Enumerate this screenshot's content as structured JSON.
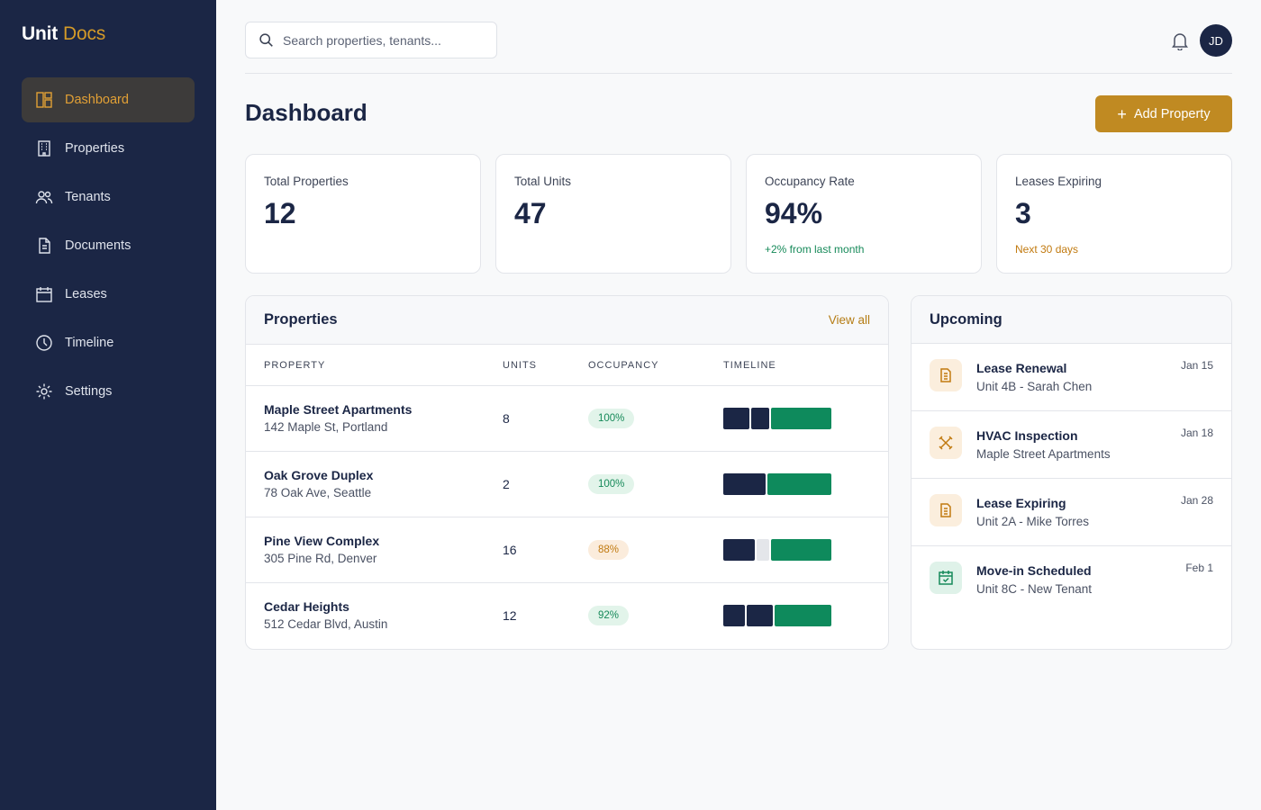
{
  "brand": {
    "name": "Unit",
    "accent": "Docs"
  },
  "sidebar": {
    "items": [
      {
        "label": "Dashboard",
        "icon": "dashboard-icon",
        "active": true
      },
      {
        "label": "Properties",
        "icon": "building-icon"
      },
      {
        "label": "Tenants",
        "icon": "users-icon"
      },
      {
        "label": "Documents",
        "icon": "document-icon"
      },
      {
        "label": "Leases",
        "icon": "calendar-icon"
      },
      {
        "label": "Timeline",
        "icon": "clock-icon"
      },
      {
        "label": "Settings",
        "icon": "gear-icon"
      }
    ]
  },
  "header": {
    "search_placeholder": "Search properties, tenants...",
    "avatar_initials": "JD"
  },
  "page": {
    "title": "Dashboard",
    "add_button": "Add Property"
  },
  "stats": [
    {
      "label": "Total Properties",
      "value": "12",
      "sub": ""
    },
    {
      "label": "Total Units",
      "value": "47",
      "sub": ""
    },
    {
      "label": "Occupancy Rate",
      "value": "94%",
      "sub": "+2% from last month"
    },
    {
      "label": "Leases Expiring",
      "value": "3",
      "sub": "Next 30 days"
    }
  ],
  "properties": {
    "title": "Properties",
    "view_all": "View all",
    "columns": [
      "Property",
      "Units",
      "Occupancy",
      "Timeline"
    ],
    "rows": [
      {
        "name": "Maple Street Apartments",
        "address": "142 Maple St, Portland",
        "units": "8",
        "occupancy": "100%",
        "status": "green",
        "timeline": [
          {
            "kind": "navy",
            "share": 0.25
          },
          {
            "kind": "navy",
            "share": 0.17
          },
          {
            "kind": "green",
            "share": 0.58
          }
        ]
      },
      {
        "name": "Oak Grove Duplex",
        "address": "78 Oak Ave, Seattle",
        "units": "2",
        "occupancy": "100%",
        "status": "green",
        "timeline": [
          {
            "kind": "navy",
            "share": 0.4
          },
          {
            "kind": "green",
            "share": 0.6
          }
        ]
      },
      {
        "name": "Pine View Complex",
        "address": "305 Pine Rd, Denver",
        "units": "16",
        "occupancy": "88%",
        "status": "amber",
        "timeline": [
          {
            "kind": "navy",
            "share": 0.3
          },
          {
            "kind": "gray",
            "share": 0.12
          },
          {
            "kind": "green",
            "share": 0.58
          }
        ]
      },
      {
        "name": "Cedar Heights",
        "address": "512 Cedar Blvd, Austin",
        "units": "12",
        "occupancy": "92%",
        "status": "green",
        "timeline": [
          {
            "kind": "navy",
            "share": 0.21
          },
          {
            "kind": "navy",
            "share": 0.25
          },
          {
            "kind": "green",
            "share": 0.54
          }
        ]
      }
    ]
  },
  "upcoming": {
    "title": "Upcoming",
    "items": [
      {
        "title": "Lease Renewal",
        "sub": "Unit 4B - Sarah Chen",
        "date": "Jan 15",
        "icon": "document-icon",
        "tone": "amber"
      },
      {
        "title": "HVAC Inspection",
        "sub": "Maple Street Apartments",
        "date": "Jan 18",
        "icon": "tools-icon",
        "tone": "amber"
      },
      {
        "title": "Lease Expiring",
        "sub": "Unit 2A - Mike Torres",
        "date": "Jan 28",
        "icon": "document-icon",
        "tone": "amber"
      },
      {
        "title": "Move-in Scheduled",
        "sub": "Unit 8C - New Tenant",
        "date": "Feb 1",
        "icon": "calendar-check-icon",
        "tone": "green"
      }
    ]
  },
  "colors": {
    "sidebar_bg": "#1b2645",
    "accent": "#c08a22",
    "success": "#0e8a5c",
    "warning": "#c17a10"
  }
}
